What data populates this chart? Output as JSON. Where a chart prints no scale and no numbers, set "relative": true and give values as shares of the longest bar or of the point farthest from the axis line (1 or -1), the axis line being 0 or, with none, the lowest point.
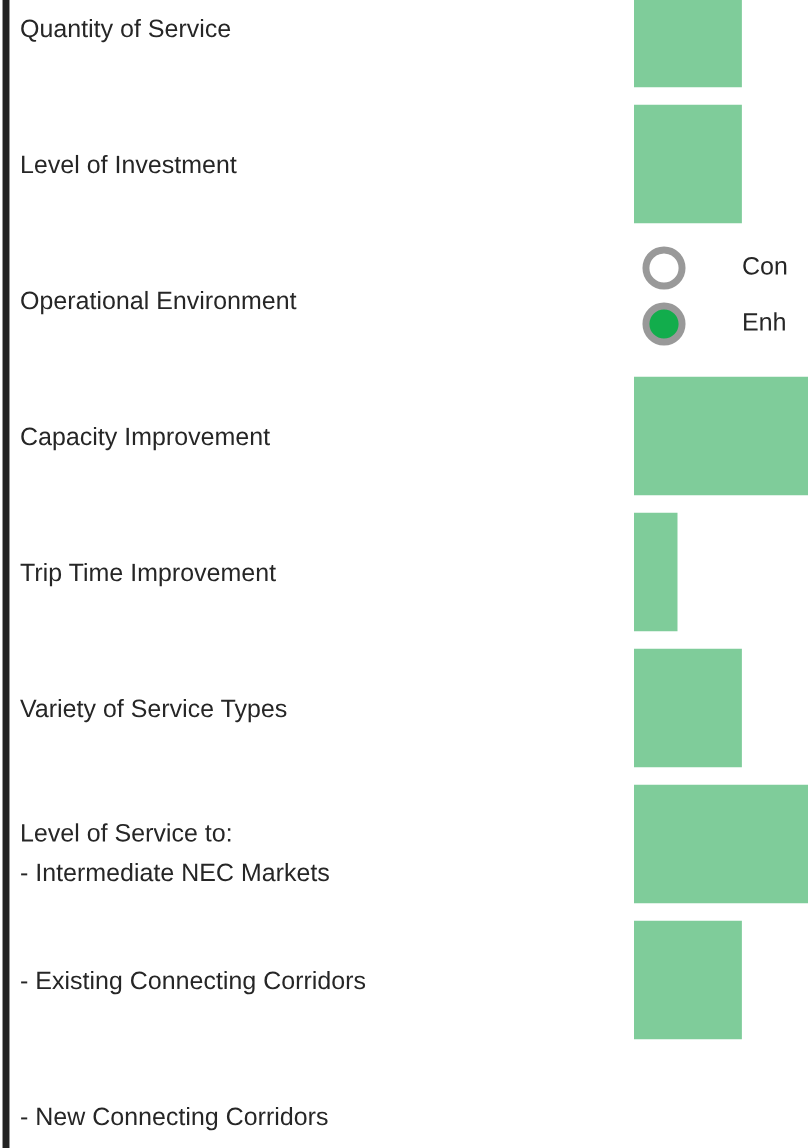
{
  "chart_data": {
    "type": "bar",
    "orientation": "horizontal",
    "relative": true,
    "categories": [
      "Quantity of Service",
      "Level of Investment",
      "Operational Environment",
      "Capacity Improvement",
      "Trip Time Improvement",
      "Variety of Service Types",
      "Level of Service to:\n- Intermediate NEC Markets",
      "- Existing Connecting Corridors",
      "- New Connecting Corridors"
    ],
    "values": [
      0.62,
      0.62,
      null,
      1,
      0.25,
      0.62,
      1,
      0.62,
      null
    ],
    "color": "#7fcc9a",
    "annotations": [
      "Con",
      "Enh"
    ]
  }
}
